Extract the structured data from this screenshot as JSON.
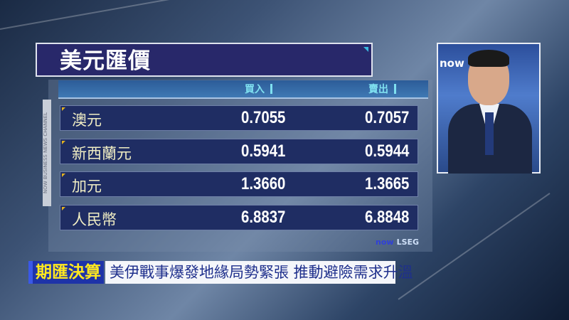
{
  "title": "美元匯價",
  "columns": {
    "buy": "買入",
    "sell": "賣出"
  },
  "rows": [
    {
      "currency": "澳元",
      "buy": "0.7055",
      "sell": "0.7057"
    },
    {
      "currency": "新西蘭元",
      "buy": "0.5941",
      "sell": "0.5944"
    },
    {
      "currency": "加元",
      "buy": "1.3660",
      "sell": "1.3665"
    },
    {
      "currency": "人民幣",
      "buy": "6.8837",
      "sell": "6.8848"
    }
  ],
  "side_label": "NOW BUSINESS NEWS CHANNEL",
  "source": {
    "logo": "now",
    "name": "LSEG"
  },
  "presenter_logo": "now",
  "ticker": {
    "tag": "期匯決算",
    "headline": "美伊戰事爆發地緣局勢緊張 推動避險需求升溫"
  },
  "colors": {
    "title_bg": "#28286a",
    "row_bg": "#1f2d63",
    "tag_bg": "#1e33a8",
    "tag_text": "#ffe820",
    "headline_text": "#1e2f8c"
  }
}
